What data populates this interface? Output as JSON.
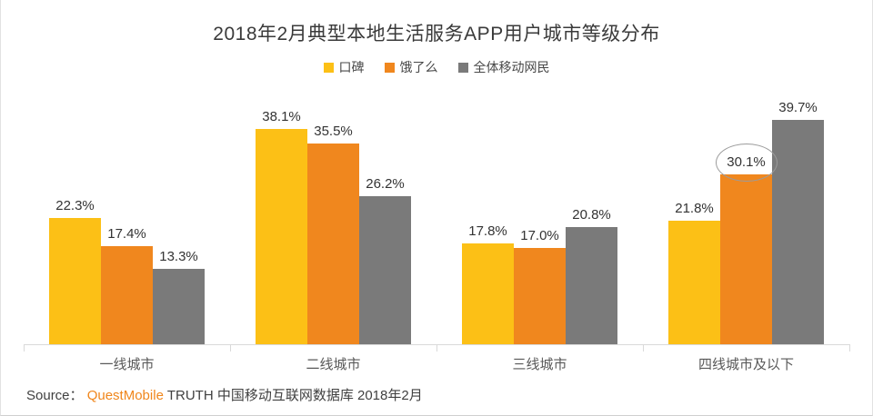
{
  "title": "2018年2月典型本地生活服务APP用户城市等级分布",
  "legend": {
    "items": [
      {
        "label": "口碑",
        "color": "#FCC016"
      },
      {
        "label": "饿了么",
        "color": "#F0871E"
      },
      {
        "label": "全体移动网民",
        "color": "#7A7A7A"
      }
    ]
  },
  "chart_data": {
    "type": "bar",
    "title": "2018年2月典型本地生活服务APP用户城市等级分布",
    "categories": [
      "一线城市",
      "二线城市",
      "三线城市",
      "四线城市及以下"
    ],
    "series": [
      {
        "name": "口碑",
        "color": "#FCC016",
        "values": [
          22.3,
          38.1,
          17.8,
          21.8
        ]
      },
      {
        "name": "饿了么",
        "color": "#F0871E",
        "values": [
          17.4,
          35.5,
          17.0,
          30.1
        ]
      },
      {
        "name": "全体移动网民",
        "color": "#7A7A7A",
        "values": [
          13.3,
          26.2,
          20.8,
          39.7
        ]
      }
    ],
    "value_suffix": "%",
    "ylim": [
      0,
      45
    ],
    "grid": false,
    "legend_position": "top",
    "axis_color": "#d9d9d9",
    "annotation": {
      "type": "ellipse-highlight",
      "series": 1,
      "category": 3,
      "value_label": "30.1%"
    }
  },
  "source": {
    "prefix": "Source：",
    "brand": "QuestMobile",
    "rest": "TRUTH 中国移动互联网数据库 2018年2月"
  }
}
